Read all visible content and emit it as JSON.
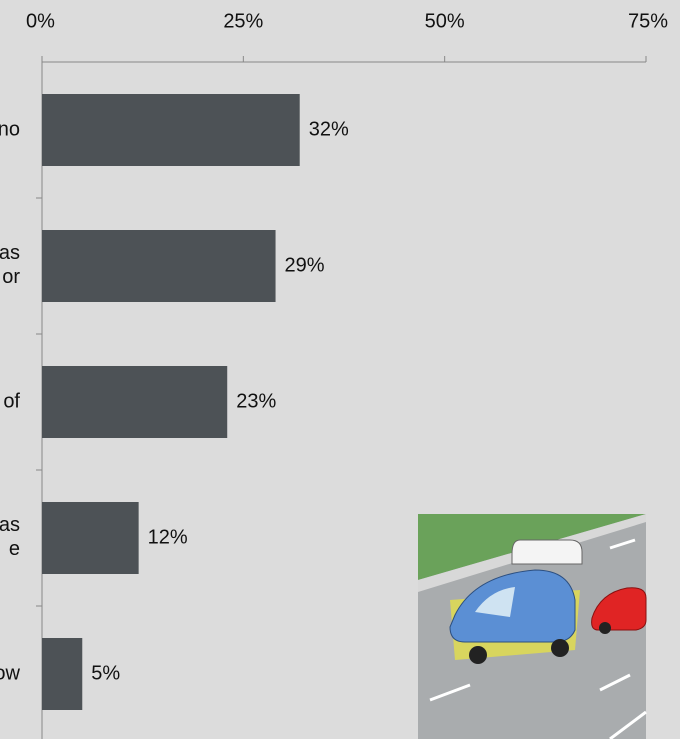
{
  "chart_data": {
    "type": "barh",
    "categories": [
      "no",
      "as\nor",
      "of",
      "as\ne",
      "ow"
    ],
    "values": [
      32,
      29,
      23,
      12,
      5
    ],
    "value_labels": [
      "32%",
      "29%",
      "23%",
      "12%",
      "5%"
    ],
    "color": "#4d5256",
    "xlim": [
      0,
      75
    ],
    "xticks": [
      {
        "value": 0,
        "label": "0%"
      },
      {
        "value": 25,
        "label": "25%"
      },
      {
        "value": 50,
        "label": "50%"
      },
      {
        "value": 75,
        "label": "75%"
      }
    ]
  }
}
